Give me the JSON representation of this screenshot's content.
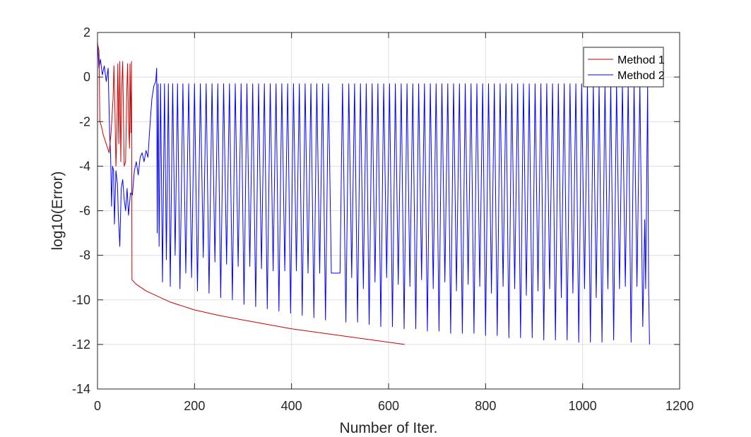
{
  "chart_data": {
    "type": "line",
    "title": "",
    "xlabel": "Number of Iter.",
    "ylabel": "log10(Error)",
    "xlim": [
      0,
      1200
    ],
    "ylim": [
      -14,
      2
    ],
    "xticks": [
      0,
      200,
      400,
      600,
      800,
      1000,
      1200
    ],
    "yticks": [
      -14,
      -12,
      -10,
      -8,
      -6,
      -4,
      -2,
      0,
      2
    ],
    "xtick_labels": [
      "0",
      "200",
      "400",
      "600",
      "800",
      "1000",
      "1200"
    ],
    "ytick_labels": [
      "-14",
      "-12",
      "-10",
      "-8",
      "-6",
      "-4",
      "-2",
      "0",
      "2"
    ],
    "grid": true,
    "legend_position": "top-right",
    "series": [
      {
        "name": "Method 1",
        "color": "#cc0000",
        "points": [
          [
            0,
            1.5
          ],
          [
            3,
            1.2
          ],
          [
            5,
            -2.0
          ],
          [
            8,
            -2.2
          ],
          [
            12,
            -2.6
          ],
          [
            18,
            -3.0
          ],
          [
            24,
            -3.4
          ],
          [
            28,
            -2.5
          ],
          [
            32,
            -1.0
          ],
          [
            34,
            0.5
          ],
          [
            36,
            -1.5
          ],
          [
            38,
            -4.0
          ],
          [
            40,
            -2.5
          ],
          [
            42,
            0.6
          ],
          [
            44,
            -3.0
          ],
          [
            46,
            0.7
          ],
          [
            48,
            -3.8
          ],
          [
            50,
            -0.5
          ],
          [
            52,
            0.7
          ],
          [
            55,
            -4.0
          ],
          [
            58,
            -3.8
          ],
          [
            60,
            -1.0
          ],
          [
            62,
            0.6
          ],
          [
            64,
            -2.0
          ],
          [
            66,
            -3.2
          ],
          [
            67,
            0.6
          ],
          [
            69,
            -2.5
          ],
          [
            70,
            0.7
          ],
          [
            71,
            -9.1
          ],
          [
            80,
            -9.3
          ],
          [
            100,
            -9.6
          ],
          [
            150,
            -10.1
          ],
          [
            200,
            -10.45
          ],
          [
            250,
            -10.7
          ],
          [
            300,
            -10.9
          ],
          [
            350,
            -11.1
          ],
          [
            400,
            -11.3
          ],
          [
            450,
            -11.45
          ],
          [
            500,
            -11.6
          ],
          [
            550,
            -11.75
          ],
          [
            600,
            -11.9
          ],
          [
            633,
            -12.0
          ]
        ]
      },
      {
        "name": "Method 2",
        "color": "#0000ff",
        "points": [
          [
            0,
            1.6
          ],
          [
            3,
            0.4
          ],
          [
            6,
            0.8
          ],
          [
            10,
            0.1
          ],
          [
            14,
            0.5
          ],
          [
            18,
            -0.2
          ],
          [
            22,
            0.4
          ],
          [
            25,
            -2.6
          ],
          [
            27,
            -3.4
          ],
          [
            29,
            -5.8
          ],
          [
            31,
            -4.0
          ],
          [
            33,
            -4.2
          ],
          [
            35,
            -6.6
          ],
          [
            38,
            -4.2
          ],
          [
            41,
            -4.8
          ],
          [
            43,
            -6.2
          ],
          [
            46,
            -7.6
          ],
          [
            49,
            -5.0
          ],
          [
            52,
            -4.6
          ],
          [
            55,
            -5.5
          ],
          [
            58,
            -6.0
          ],
          [
            61,
            -5.0
          ],
          [
            64,
            -6.2
          ],
          [
            68,
            -5.2
          ],
          [
            72,
            -5.3
          ],
          [
            76,
            -4.2
          ],
          [
            80,
            -3.8
          ],
          [
            84,
            -4.4
          ],
          [
            88,
            -3.6
          ],
          [
            92,
            -3.4
          ],
          [
            96,
            -3.8
          ],
          [
            100,
            -3.3
          ],
          [
            104,
            -3.6
          ],
          [
            108,
            -2.2
          ],
          [
            112,
            -1.0
          ],
          [
            116,
            -0.4
          ],
          [
            120,
            -0.2
          ],
          [
            122,
            0.4
          ],
          [
            123,
            -7.0
          ],
          [
            125,
            -0.3
          ],
          [
            127,
            -7.6
          ],
          [
            130,
            -0.3
          ],
          [
            134,
            -9.2
          ],
          [
            138,
            -0.3
          ],
          [
            142,
            -8.2
          ],
          [
            146,
            -0.3
          ],
          [
            150,
            -9.4
          ],
          [
            155,
            -0.3
          ],
          [
            160,
            -8.0
          ],
          [
            165,
            -0.3
          ],
          [
            170,
            -9.5
          ],
          [
            176,
            -0.3
          ],
          [
            182,
            -8.8
          ],
          [
            188,
            -0.3
          ],
          [
            194,
            -9.0
          ],
          [
            200,
            -0.3
          ],
          [
            206,
            -9.6
          ],
          [
            212,
            -0.3
          ],
          [
            218,
            -8.1
          ],
          [
            224,
            -0.3
          ],
          [
            230,
            -9.7
          ],
          [
            236,
            -0.3
          ],
          [
            242,
            -8.3
          ],
          [
            248,
            -0.3
          ],
          [
            254,
            -9.9
          ],
          [
            260,
            -0.3
          ],
          [
            266,
            -8.4
          ],
          [
            272,
            -0.3
          ],
          [
            278,
            -10.0
          ],
          [
            284,
            -0.3
          ],
          [
            290,
            -8.5
          ],
          [
            296,
            -0.3
          ],
          [
            302,
            -10.2
          ],
          [
            308,
            -0.3
          ],
          [
            314,
            -8.5
          ],
          [
            320,
            -0.3
          ],
          [
            326,
            -10.3
          ],
          [
            332,
            -0.3
          ],
          [
            338,
            -8.6
          ],
          [
            344,
            -0.3
          ],
          [
            350,
            -10.4
          ],
          [
            356,
            -0.3
          ],
          [
            362,
            -8.7
          ],
          [
            368,
            -0.3
          ],
          [
            374,
            -10.5
          ],
          [
            380,
            -0.3
          ],
          [
            386,
            -8.7
          ],
          [
            392,
            -0.3
          ],
          [
            398,
            -10.6
          ],
          [
            404,
            -0.3
          ],
          [
            410,
            -8.7
          ],
          [
            416,
            -0.3
          ],
          [
            422,
            -10.7
          ],
          [
            428,
            -0.3
          ],
          [
            434,
            -8.8
          ],
          [
            440,
            -0.3
          ],
          [
            446,
            -10.8
          ],
          [
            452,
            -0.3
          ],
          [
            458,
            -8.8
          ],
          [
            464,
            -0.3
          ],
          [
            470,
            -10.9
          ],
          [
            476,
            -0.3
          ],
          [
            482,
            -8.8
          ],
          [
            500,
            -8.8
          ],
          [
            505,
            -0.3
          ],
          [
            512,
            -11.0
          ],
          [
            518,
            -0.3
          ],
          [
            524,
            -9.0
          ],
          [
            530,
            -0.3
          ],
          [
            536,
            -11.0
          ],
          [
            542,
            -0.3
          ],
          [
            548,
            -9.5
          ],
          [
            554,
            -0.3
          ],
          [
            560,
            -11.1
          ],
          [
            566,
            -0.3
          ],
          [
            572,
            -9.2
          ],
          [
            578,
            -0.3
          ],
          [
            584,
            -11.2
          ],
          [
            590,
            -0.3
          ],
          [
            596,
            -9.0
          ],
          [
            602,
            -0.3
          ],
          [
            608,
            -11.2
          ],
          [
            614,
            -0.3
          ],
          [
            620,
            -9.3
          ],
          [
            626,
            -0.3
          ],
          [
            632,
            -11.3
          ],
          [
            638,
            -0.3
          ],
          [
            644,
            -9.4
          ],
          [
            650,
            -0.3
          ],
          [
            656,
            -11.3
          ],
          [
            662,
            -0.3
          ],
          [
            668,
            -9.1
          ],
          [
            674,
            -0.3
          ],
          [
            680,
            -11.4
          ],
          [
            686,
            -0.3
          ],
          [
            692,
            -9.5
          ],
          [
            698,
            -0.3
          ],
          [
            704,
            -11.4
          ],
          [
            710,
            -0.3
          ],
          [
            716,
            -9.2
          ],
          [
            722,
            -0.3
          ],
          [
            728,
            -11.5
          ],
          [
            734,
            -0.3
          ],
          [
            740,
            -9.6
          ],
          [
            746,
            -0.3
          ],
          [
            752,
            -11.5
          ],
          [
            758,
            -0.3
          ],
          [
            764,
            -9.3
          ],
          [
            770,
            -0.3
          ],
          [
            776,
            -11.5
          ],
          [
            782,
            -0.3
          ],
          [
            788,
            -9.4
          ],
          [
            794,
            -0.3
          ],
          [
            800,
            -11.6
          ],
          [
            806,
            -0.3
          ],
          [
            812,
            -9.7
          ],
          [
            818,
            -0.3
          ],
          [
            824,
            -11.6
          ],
          [
            830,
            -0.3
          ],
          [
            836,
            -9.4
          ],
          [
            842,
            -0.3
          ],
          [
            848,
            -11.7
          ],
          [
            854,
            -0.3
          ],
          [
            860,
            -9.5
          ],
          [
            866,
            -0.3
          ],
          [
            872,
            -11.7
          ],
          [
            878,
            -0.3
          ],
          [
            884,
            -9.8
          ],
          [
            890,
            -0.3
          ],
          [
            896,
            -11.7
          ],
          [
            902,
            -0.3
          ],
          [
            908,
            -9.6
          ],
          [
            914,
            -0.3
          ],
          [
            920,
            -11.8
          ],
          [
            926,
            -0.3
          ],
          [
            932,
            -9.5
          ],
          [
            938,
            -0.3
          ],
          [
            944,
            -11.8
          ],
          [
            950,
            -0.3
          ],
          [
            956,
            -9.9
          ],
          [
            962,
            -0.3
          ],
          [
            968,
            -11.8
          ],
          [
            974,
            -0.3
          ],
          [
            980,
            -9.7
          ],
          [
            986,
            -0.3
          ],
          [
            992,
            -11.9
          ],
          [
            998,
            -0.3
          ],
          [
            1004,
            -9.5
          ],
          [
            1010,
            -0.3
          ],
          [
            1016,
            -11.9
          ],
          [
            1022,
            -0.3
          ],
          [
            1028,
            -9.9
          ],
          [
            1034,
            -0.3
          ],
          [
            1040,
            -11.9
          ],
          [
            1046,
            -0.3
          ],
          [
            1052,
            -9.5
          ],
          [
            1058,
            -0.3
          ],
          [
            1064,
            -11.8
          ],
          [
            1070,
            -0.3
          ],
          [
            1076,
            -9.5
          ],
          [
            1082,
            -0.3
          ],
          [
            1088,
            -9.4
          ],
          [
            1094,
            -0.3
          ],
          [
            1100,
            -11.9
          ],
          [
            1106,
            -0.3
          ],
          [
            1112,
            -9.4
          ],
          [
            1118,
            -0.3
          ],
          [
            1124,
            -11.2
          ],
          [
            1128,
            -6.4
          ],
          [
            1130,
            -9.5
          ],
          [
            1134,
            -0.3
          ],
          [
            1136,
            -9.5
          ],
          [
            1138,
            -12.0
          ]
        ]
      }
    ]
  }
}
